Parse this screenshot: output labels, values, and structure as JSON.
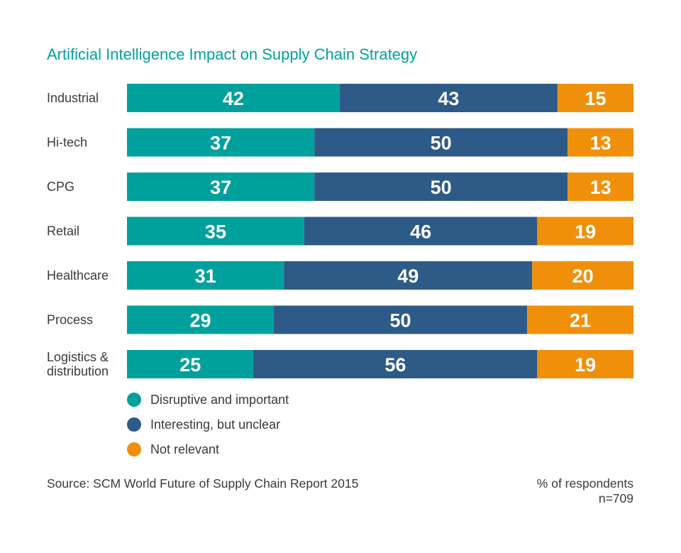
{
  "chart_data": {
    "type": "bar",
    "orientation": "horizontal",
    "stacked": true,
    "title": "Artificial Intelligence Impact on Supply Chain Strategy",
    "categories": [
      "Industrial",
      "Hi-tech",
      "CPG",
      "Retail",
      "Healthcare",
      "Process",
      "Logistics & distribution"
    ],
    "category_lines": [
      [
        "Industrial"
      ],
      [
        "Hi-tech"
      ],
      [
        "CPG"
      ],
      [
        "Retail"
      ],
      [
        "Healthcare"
      ],
      [
        "Process"
      ],
      [
        "Logistics &",
        "distribution"
      ]
    ],
    "series": [
      {
        "name": "Disruptive and important",
        "color": "#00a19c",
        "values": [
          42,
          37,
          37,
          35,
          31,
          29,
          25
        ]
      },
      {
        "name": "Interesting, but unclear",
        "color": "#2e5a87",
        "values": [
          43,
          50,
          50,
          46,
          49,
          50,
          56
        ]
      },
      {
        "name": "Not relevant",
        "color": "#f0900a",
        "values": [
          15,
          13,
          13,
          19,
          20,
          21,
          19
        ]
      }
    ],
    "xlim": [
      0,
      100
    ],
    "grid": false,
    "legend_position": "bottom-left",
    "source": "Source: SCM World Future of Supply Chain Report 2015",
    "unit_note": "% of respondents",
    "sample_size": "n=709"
  },
  "colors": {
    "title": "#00a19c",
    "text": "#3a3a3a",
    "value_label": "#ffffff"
  }
}
